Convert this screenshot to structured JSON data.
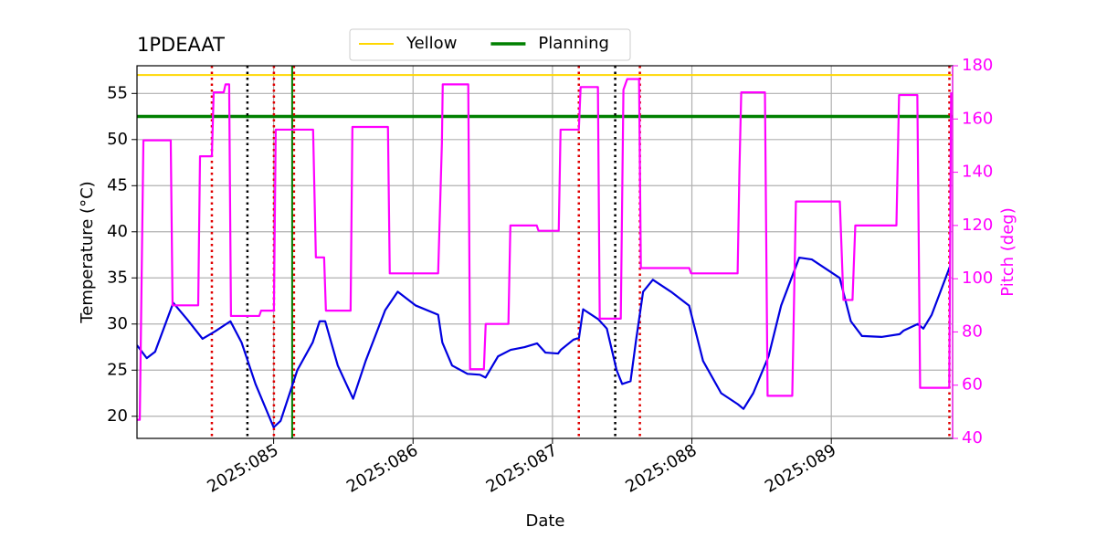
{
  "chart_data": {
    "type": "line",
    "title": "1PDEAAT",
    "x_label": "Date",
    "y_label": "Temperature (°C)",
    "y2_label": "Pitch (deg)",
    "y2_color": "#ff00ff",
    "xlim": [
      84.02,
      89.87
    ],
    "xticks": [
      {
        "value": 85,
        "label": "2025:085"
      },
      {
        "value": 86,
        "label": "2025:086"
      },
      {
        "value": 87,
        "label": "2025:087"
      },
      {
        "value": 88,
        "label": "2025:088"
      },
      {
        "value": 89,
        "label": "2025:089"
      }
    ],
    "ylim": [
      17.6,
      58
    ],
    "yticks": [
      20,
      25,
      30,
      35,
      40,
      45,
      50,
      55
    ],
    "y2lim": [
      40,
      180
    ],
    "y2ticks": [
      40,
      60,
      80,
      100,
      120,
      140,
      160,
      180
    ],
    "grid": true,
    "legend": "top",
    "hlines": [
      {
        "name": "Yellow",
        "value": 57,
        "color": "#ffd700"
      },
      {
        "name": "Planning",
        "value": 52.5,
        "color": "#008000"
      }
    ],
    "vlines": [
      {
        "x": 84.557,
        "color": "#e00000"
      },
      {
        "x": 84.812,
        "color": "#000000"
      },
      {
        "x": 85.002,
        "color": "#e00000"
      },
      {
        "x": 85.146,
        "color": "#e00000"
      },
      {
        "x": 87.189,
        "color": "#e00000"
      },
      {
        "x": 87.45,
        "color": "#000000"
      },
      {
        "x": 87.627,
        "color": "#e00000"
      },
      {
        "x": 89.847,
        "color": "#e00000"
      }
    ],
    "vlines_solid": [
      {
        "x": 85.133,
        "color": "#008000"
      }
    ],
    "series": [
      {
        "color": "#0000e0",
        "axis": "y",
        "x": [
          84.02,
          84.09,
          84.15,
          84.28,
          84.38,
          84.49,
          84.58,
          84.69,
          84.77,
          84.87,
          85.0,
          85.05,
          85.17,
          85.28,
          85.33,
          85.37,
          85.46,
          85.57,
          85.66,
          85.8,
          85.89,
          86.02,
          86.18,
          86.21,
          86.28,
          86.39,
          86.48,
          86.52,
          86.61,
          86.7,
          86.8,
          86.89,
          86.95,
          87.04,
          87.06,
          87.15,
          87.19,
          87.22,
          87.33,
          87.39,
          87.46,
          87.5,
          87.56,
          87.6,
          87.65,
          87.72,
          87.85,
          87.98,
          88.08,
          88.21,
          88.33,
          88.37,
          88.44,
          88.55,
          88.64,
          88.77,
          88.86,
          88.96,
          89.06,
          89.14,
          89.22,
          89.36,
          89.49,
          89.52,
          89.62,
          89.66,
          89.72,
          89.85
        ],
        "values": [
          27.7,
          26.3,
          27,
          32.3,
          30.5,
          28.4,
          29.2,
          30.3,
          28,
          23.5,
          18.8,
          19.5,
          25,
          28,
          30.3,
          30.3,
          25.5,
          21.9,
          26,
          31.5,
          33.5,
          32,
          31,
          28,
          25.5,
          24.6,
          24.5,
          24.2,
          26.5,
          27.2,
          27.5,
          27.9,
          26.9,
          26.8,
          27.2,
          28.3,
          28.5,
          31.6,
          30.5,
          29.5,
          25,
          23.5,
          23.8,
          28.3,
          33.5,
          34.8,
          33.5,
          32,
          26,
          22.5,
          21.3,
          20.8,
          22.5,
          26.5,
          32,
          37.2,
          37,
          36,
          35,
          30.3,
          28.7,
          28.6,
          28.9,
          29.3,
          30,
          29.5,
          31,
          36.2
        ]
      },
      {
        "color": "#ff00ff",
        "axis": "y2",
        "x": [
          84.02,
          84.04,
          84.066,
          84.262,
          84.275,
          84.459,
          84.472,
          84.557,
          84.57,
          84.642,
          84.655,
          84.681,
          84.694,
          84.897,
          84.91,
          85.002,
          85.015,
          85.283,
          85.303,
          85.362,
          85.375,
          85.552,
          85.565,
          85.82,
          85.833,
          86.18,
          86.207,
          86.213,
          86.396,
          86.409,
          86.508,
          86.521,
          86.684,
          86.698,
          86.887,
          86.9,
          87.045,
          87.058,
          87.189,
          87.202,
          87.326,
          87.339,
          87.49,
          87.509,
          87.536,
          87.621,
          87.634,
          87.981,
          87.994,
          88.328,
          88.341,
          88.354,
          88.524,
          88.543,
          88.72,
          88.746,
          89.061,
          89.087,
          89.152,
          89.172,
          89.467,
          89.486,
          89.617,
          89.637,
          89.846,
          89.859
        ],
        "values": [
          47,
          47,
          152,
          152,
          90,
          90,
          146,
          146,
          170,
          170,
          173,
          173,
          86,
          86,
          88,
          88,
          156,
          156,
          108,
          108,
          88,
          88,
          157,
          157,
          102,
          102,
          151,
          173,
          173,
          66,
          66,
          83,
          83,
          120,
          120,
          118,
          118,
          156,
          156,
          172,
          172,
          85,
          85,
          171,
          175,
          175,
          104,
          104,
          102,
          102,
          141,
          170,
          170,
          56,
          56,
          129,
          129,
          92,
          92,
          120,
          120,
          169,
          169,
          59,
          59,
          170
        ]
      }
    ]
  }
}
